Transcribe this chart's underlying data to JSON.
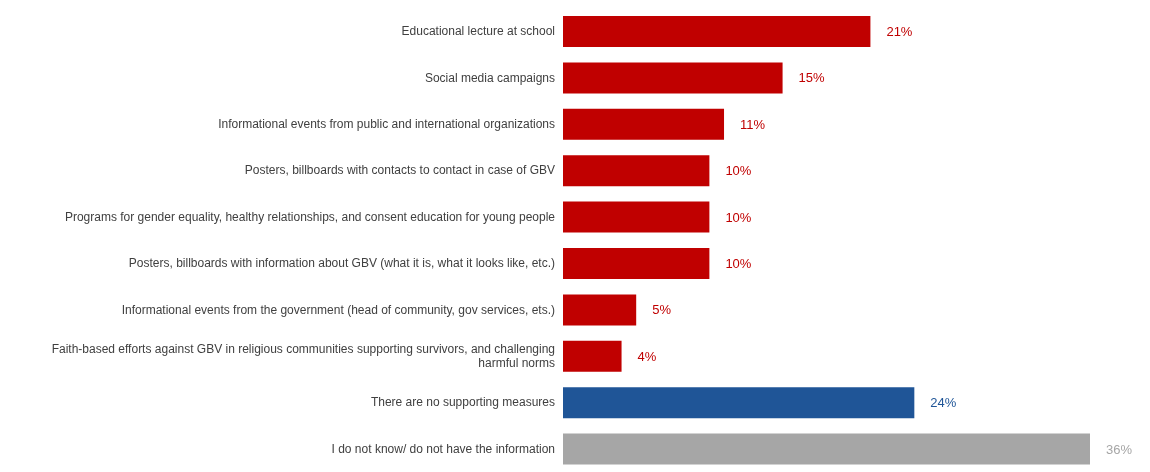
{
  "chart_data": {
    "type": "bar",
    "orientation": "horizontal",
    "categories": [
      "Educational lecture at school",
      "Social media campaigns",
      "Informational events from public and international organizations",
      "Posters, billboards with contacts to contact in case of GBV",
      "Programs for gender equality, healthy relationships, and consent education for young people",
      "Posters, billboards with information about GBV (what it is, what it looks like, etc.)",
      "Informational events from the government (head of community, gov services, ets.)",
      "Faith-based efforts against GBV in religious communities supporting survivors, and challenging harmful norms",
      "There are no supporting measures",
      "I do not know/ do not have the information"
    ],
    "values": [
      21,
      15,
      11,
      10,
      10,
      10,
      5,
      4,
      24,
      36
    ],
    "colors": [
      "#c00000",
      "#c00000",
      "#c00000",
      "#c00000",
      "#c00000",
      "#c00000",
      "#c00000",
      "#c00000",
      "#1f5597",
      "#a6a6a6"
    ],
    "value_labels": [
      "21%",
      "15%",
      "11%",
      "10%",
      "10%",
      "10%",
      "5%",
      "4%",
      "24%",
      "36%"
    ],
    "grid": false,
    "legend": false
  }
}
